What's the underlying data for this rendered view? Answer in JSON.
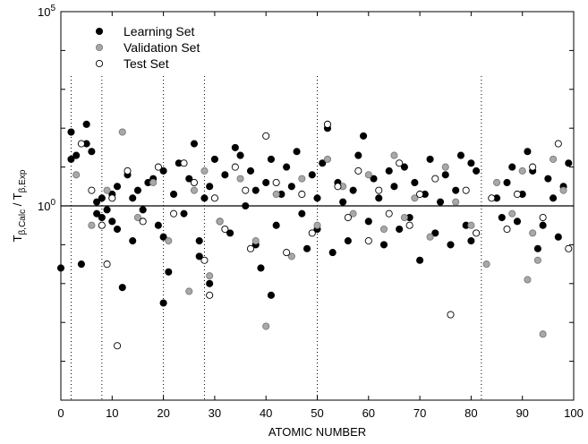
{
  "chart_data": {
    "type": "scatter",
    "xlabel": "ATOMIC NUMBER",
    "ylabel": {
      "base": "T",
      "num_sub": "β,Calc",
      "sep": " / ",
      "den_sub": "β,Exp"
    },
    "xlim": [
      0,
      100
    ],
    "ylim_log10": [
      -5,
      5
    ],
    "y_scale": "log",
    "x_ticks": [
      "0",
      "10",
      "20",
      "30",
      "40",
      "50",
      "60",
      "70",
      "80",
      "90",
      "100"
    ],
    "y_ticks": [
      {
        "log10": 5,
        "base": "10",
        "exp": "5"
      },
      {
        "log10": 0,
        "base": "10",
        "exp": "0"
      }
    ],
    "reference_line_log10": 0,
    "vertical_dotted_x": [
      2,
      8,
      20,
      28,
      50,
      82
    ],
    "legend_position": "top-left",
    "series": [
      {
        "name": "Learning Set",
        "marker": "filled-black",
        "points_log10": [
          [
            0,
            -1.6
          ],
          [
            2,
            1.9
          ],
          [
            2,
            1.2
          ],
          [
            3,
            1.3
          ],
          [
            4,
            -1.5
          ],
          [
            5,
            2.1
          ],
          [
            5,
            1.6
          ],
          [
            6,
            1.4
          ],
          [
            7,
            0.1
          ],
          [
            7,
            -0.2
          ],
          [
            8,
            0.2
          ],
          [
            8,
            -0.3
          ],
          [
            9,
            -0.1
          ],
          [
            10,
            0.3
          ],
          [
            10,
            -0.4
          ],
          [
            11,
            0.5
          ],
          [
            11,
            -0.6
          ],
          [
            12,
            -2.1
          ],
          [
            13,
            0.8
          ],
          [
            14,
            0.2
          ],
          [
            14,
            -0.9
          ],
          [
            15,
            0.4
          ],
          [
            16,
            -0.1
          ],
          [
            17,
            0.6
          ],
          [
            18,
            0.7
          ],
          [
            19,
            -0.5
          ],
          [
            20,
            0.9
          ],
          [
            20,
            -0.8
          ],
          [
            20,
            -2.5
          ],
          [
            21,
            -1.7
          ],
          [
            22,
            0.3
          ],
          [
            23,
            1.1
          ],
          [
            24,
            -0.2
          ],
          [
            25,
            0.7
          ],
          [
            26,
            1.6
          ],
          [
            27,
            -0.9
          ],
          [
            27,
            -1.3
          ],
          [
            28,
            0.2
          ],
          [
            29,
            0.5
          ],
          [
            29,
            -2.0
          ],
          [
            30,
            1.2
          ],
          [
            31,
            -0.4
          ],
          [
            32,
            0.8
          ],
          [
            33,
            -0.7
          ],
          [
            34,
            1.5
          ],
          [
            35,
            1.3
          ],
          [
            36,
            0.0
          ],
          [
            37,
            0.9
          ],
          [
            38,
            -1.0
          ],
          [
            38,
            0.4
          ],
          [
            39,
            -1.6
          ],
          [
            40,
            0.6
          ],
          [
            41,
            -2.3
          ],
          [
            41,
            1.2
          ],
          [
            42,
            -0.5
          ],
          [
            43,
            0.3
          ],
          [
            44,
            1.0
          ],
          [
            45,
            0.5
          ],
          [
            46,
            1.4
          ],
          [
            47,
            -0.2
          ],
          [
            48,
            -1.1
          ],
          [
            49,
            0.8
          ],
          [
            50,
            0.2
          ],
          [
            50,
            -0.6
          ],
          [
            51,
            1.1
          ],
          [
            52,
            2.0
          ],
          [
            53,
            -1.2
          ],
          [
            54,
            0.6
          ],
          [
            55,
            0.1
          ],
          [
            56,
            -0.9
          ],
          [
            57,
            0.4
          ],
          [
            58,
            1.3
          ],
          [
            59,
            1.8
          ],
          [
            60,
            -0.4
          ],
          [
            61,
            0.7
          ],
          [
            62,
            0.2
          ],
          [
            63,
            -1.0
          ],
          [
            64,
            0.9
          ],
          [
            65,
            0.5
          ],
          [
            66,
            -0.6
          ],
          [
            67,
            1.0
          ],
          [
            68,
            -0.3
          ],
          [
            69,
            0.6
          ],
          [
            70,
            -1.4
          ],
          [
            71,
            0.3
          ],
          [
            72,
            1.2
          ],
          [
            73,
            -0.7
          ],
          [
            74,
            0.1
          ],
          [
            75,
            0.8
          ],
          [
            76,
            -1.0
          ],
          [
            77,
            0.4
          ],
          [
            78,
            1.3
          ],
          [
            79,
            -0.5
          ],
          [
            80,
            1.1
          ],
          [
            80,
            -0.9
          ],
          [
            81,
            0.9
          ],
          [
            85,
            0.2
          ],
          [
            86,
            -0.3
          ],
          [
            87,
            0.6
          ],
          [
            88,
            1.0
          ],
          [
            89,
            -0.4
          ],
          [
            90,
            0.3
          ],
          [
            91,
            1.4
          ],
          [
            92,
            0.9
          ],
          [
            93,
            -1.1
          ],
          [
            94,
            -0.5
          ],
          [
            95,
            0.7
          ],
          [
            96,
            0.2
          ],
          [
            97,
            -0.8
          ],
          [
            98,
            0.5
          ],
          [
            99,
            1.1
          ]
        ]
      },
      {
        "name": "Validation Set",
        "marker": "filled-gray",
        "points_log10": [
          [
            3,
            0.8
          ],
          [
            6,
            -0.5
          ],
          [
            9,
            0.4
          ],
          [
            12,
            1.9
          ],
          [
            15,
            -0.3
          ],
          [
            18,
            0.6
          ],
          [
            21,
            -0.9
          ],
          [
            25,
            -2.2
          ],
          [
            26,
            0.4
          ],
          [
            28,
            0.9
          ],
          [
            29,
            -1.8
          ],
          [
            31,
            -0.4
          ],
          [
            35,
            0.7
          ],
          [
            38,
            -0.9
          ],
          [
            40,
            -3.1
          ],
          [
            42,
            0.3
          ],
          [
            45,
            -1.3
          ],
          [
            47,
            0.7
          ],
          [
            50,
            -0.5
          ],
          [
            52,
            1.2
          ],
          [
            55,
            0.5
          ],
          [
            57,
            -0.2
          ],
          [
            60,
            0.8
          ],
          [
            63,
            -0.6
          ],
          [
            65,
            1.3
          ],
          [
            67,
            -0.3
          ],
          [
            69,
            0.2
          ],
          [
            72,
            -0.8
          ],
          [
            75,
            1.0
          ],
          [
            77,
            0.1
          ],
          [
            80,
            -0.5
          ],
          [
            83,
            -1.5
          ],
          [
            85,
            0.6
          ],
          [
            88,
            -0.2
          ],
          [
            90,
            0.9
          ],
          [
            91,
            -1.9
          ],
          [
            92,
            -0.7
          ],
          [
            93,
            -1.4
          ],
          [
            94,
            -3.3
          ],
          [
            96,
            1.2
          ],
          [
            98,
            0.4
          ]
        ]
      },
      {
        "name": "Test Set",
        "marker": "open-circle",
        "points_log10": [
          [
            4,
            1.6
          ],
          [
            6,
            0.4
          ],
          [
            8,
            -0.5
          ],
          [
            9,
            -1.5
          ],
          [
            10,
            0.2
          ],
          [
            11,
            -3.6
          ],
          [
            13,
            0.9
          ],
          [
            16,
            -0.4
          ],
          [
            19,
            1.0
          ],
          [
            22,
            -0.2
          ],
          [
            24,
            1.1
          ],
          [
            26,
            0.6
          ],
          [
            28,
            -1.4
          ],
          [
            29,
            -2.3
          ],
          [
            30,
            0.2
          ],
          [
            32,
            -0.6
          ],
          [
            34,
            1.0
          ],
          [
            36,
            0.4
          ],
          [
            37,
            -1.1
          ],
          [
            40,
            1.8
          ],
          [
            42,
            0.6
          ],
          [
            44,
            -1.2
          ],
          [
            47,
            0.3
          ],
          [
            49,
            -0.7
          ],
          [
            52,
            2.1
          ],
          [
            54,
            0.5
          ],
          [
            56,
            -0.3
          ],
          [
            58,
            0.9
          ],
          [
            60,
            -0.9
          ],
          [
            62,
            0.4
          ],
          [
            64,
            -0.2
          ],
          [
            66,
            1.1
          ],
          [
            68,
            -0.5
          ],
          [
            70,
            0.3
          ],
          [
            73,
            0.7
          ],
          [
            76,
            -2.8
          ],
          [
            79,
            0.4
          ],
          [
            81,
            -0.7
          ],
          [
            84,
            0.2
          ],
          [
            87,
            -0.6
          ],
          [
            89,
            0.3
          ],
          [
            92,
            1.0
          ],
          [
            94,
            -0.3
          ],
          [
            97,
            1.6
          ],
          [
            99,
            -1.1
          ]
        ]
      }
    ]
  }
}
